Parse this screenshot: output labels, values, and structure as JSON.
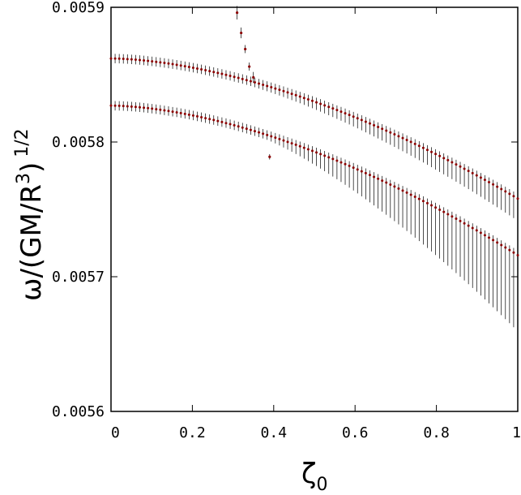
{
  "chart_data": {
    "type": "scatter",
    "title": "",
    "xlabel": "ζ0",
    "xlabel_main": "ζ",
    "xlabel_sub": "0",
    "ylabel": "ω/(GM/R3)1/2",
    "ylabel_main": "ω/(GM/R",
    "ylabel_sup1": "3",
    "ylabel_close": ")",
    "ylabel_sup2": "1/2",
    "xlim": [
      0,
      1
    ],
    "ylim": [
      0.0056,
      0.0059
    ],
    "x_ticks": [
      0,
      0.2,
      0.4,
      0.6,
      0.8,
      1
    ],
    "x_tick_labels": [
      "0",
      "0.2",
      "0.4",
      "0.6",
      "0.8",
      "1"
    ],
    "y_ticks": [
      0.0056,
      0.0057,
      0.0058,
      0.0059
    ],
    "y_tick_labels": [
      "0.0056",
      "0.0057",
      "0.0058",
      "0.0059"
    ],
    "grid": false,
    "legend": "none",
    "series": [
      {
        "style": "points-with-error-bars",
        "color": "#8b0000",
        "x_start": 0,
        "x_end": 1,
        "n": 100,
        "y0": 0.005862,
        "y1": 0.005758,
        "shape_exp": 1.7,
        "bar_half": 3.5e-06,
        "bar_lower_extra": 1.3e-05,
        "bar_lower_from": 0.34
      },
      {
        "style": "points-with-error-bars",
        "color": "#8b0000",
        "x_start": 0,
        "x_end": 1,
        "n": 100,
        "y0": 0.005827,
        "y1": 0.005716,
        "shape_exp": 1.7,
        "bar_half": 3.5e-06,
        "bar_lower_extra": 5.3e-05,
        "bar_lower_from": 0.38
      },
      {
        "style": "isolated-points",
        "color": "#8b0000",
        "points": [
          {
            "x": 0.31,
            "y": 0.005896,
            "err": 5e-06
          },
          {
            "x": 0.32,
            "y": 0.005881,
            "err": 4e-06
          },
          {
            "x": 0.33,
            "y": 0.005869,
            "err": 3e-06
          },
          {
            "x": 0.34,
            "y": 0.005856,
            "err": 3e-06
          },
          {
            "x": 0.35,
            "y": 0.005848,
            "err": 4e-06
          },
          {
            "x": 0.39,
            "y": 0.005789,
            "err": 2e-06
          }
        ]
      }
    ]
  }
}
